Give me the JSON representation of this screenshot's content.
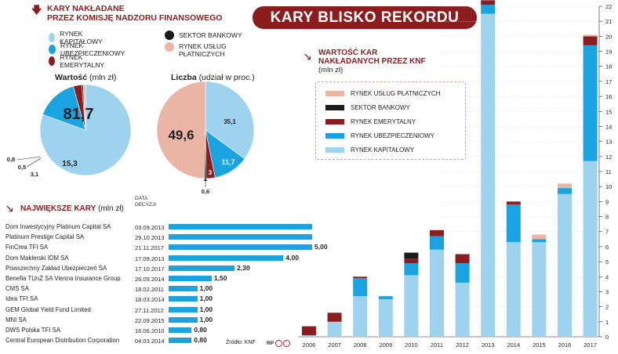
{
  "headline": "KARY BLISKO REKORDU",
  "section1": {
    "title_line1": "KARY NAKŁADANE",
    "title_line2": "PRZEZ KOMISJĘ NADZORU FINANSOWEGO"
  },
  "pie_legend": [
    {
      "label": "RYNEK KAPITAŁOWY",
      "color": "#9ed3ef"
    },
    {
      "label": "RYNEK UBEZPIECZENIOWY",
      "color": "#1aa3e0"
    },
    {
      "label": "RYNEK EMERYTALNY",
      "color": "#8b1d1f"
    },
    {
      "label": "SEKTOR BANKOWY",
      "color": "#1a1a1a"
    },
    {
      "label": "RYNEK USŁUG PŁATNICZYCH",
      "color": "#eab5a4",
      "label_line1": "RYNEK USŁUG",
      "label_line2": "PŁATNICZYCH"
    }
  ],
  "pie_value": {
    "caption_bold": "Wartość",
    "caption_rest": " (mln zł)",
    "labels": {
      "kap": "81,7",
      "ubez": "15,3",
      "emer": "3,1",
      "bank": "0,5",
      "plat": "0,8"
    }
  },
  "pie_count": {
    "caption_bold": "Liczba",
    "caption_rest": " (udział w proc.)",
    "labels": {
      "plat": "49,6",
      "kap": "35,1",
      "ubez": "11,7",
      "emer": "3",
      "bank": "0,6"
    }
  },
  "section2": {
    "title": "NAJWIĘKSZE KARY",
    "unit": "(mln zł)",
    "date_header_line1": "DATA",
    "date_header_line2": "DECYZJI",
    "source": "Źródło: KNF"
  },
  "table_rows": [
    {
      "name": "Dom Inwestycyjny Platinum Capital SA",
      "date": "03.09.2013",
      "value": 5.0,
      "label": ""
    },
    {
      "name": "Platinum Prestige Capital SA",
      "date": "29.10.2013",
      "value": 5.0,
      "label": ""
    },
    {
      "name": "FinCrea TFI SA",
      "date": "21.11.2017",
      "value": 5.0,
      "label": "5,00"
    },
    {
      "name": "Dom Maklerski IDM SA",
      "date": "17.09.2013",
      "value": 4.0,
      "label": "4,00"
    },
    {
      "name": "Powszechny Zakład Ubezpieczeń SA",
      "date": "17.10.2017",
      "value": 2.3,
      "label": "2,30"
    },
    {
      "name": "Benefia TUnŻ SA Vienna Insurance Group",
      "date": "26.09.2014",
      "value": 1.5,
      "label": "1,50"
    },
    {
      "name": "CMS SA",
      "date": "18.02.2011",
      "value": 1.0,
      "label": "1,00"
    },
    {
      "name": "Idea TFI SA",
      "date": "18.03.2014",
      "value": 1.0,
      "label": "1,00"
    },
    {
      "name": "GEM Global Yield Fund Limited",
      "date": "27.11.2012",
      "value": 1.0,
      "label": "1,00"
    },
    {
      "name": "MNI SA",
      "date": "22.09.2015",
      "value": 1.0,
      "label": "1,00"
    },
    {
      "name": "DWS Polska TFI SA",
      "date": "16.06.2010",
      "value": 0.8,
      "label": "0,80"
    },
    {
      "name": "Central European Distribution Corporation",
      "date": "04.03.2014",
      "value": 0.8,
      "label": "0,80"
    }
  ],
  "section3": {
    "title_line1": "WARTOŚĆ KAR",
    "title_line2": "NAKŁADANYCH PRZEZ KNF",
    "unit": "(mln zł)"
  },
  "stack_legend": [
    {
      "label": "RYNEK USŁUG PŁATNICZYCH",
      "color": "#eab5a4"
    },
    {
      "label": "SEKTOR BANKOWY",
      "color": "#1a1a1a"
    },
    {
      "label": "RYNEK EMERYTALNY",
      "color": "#8b1d1f"
    },
    {
      "label": "RYNEK UBEZPIECZENIOWY",
      "color": "#1aa3e0"
    },
    {
      "label": "RYNEK KAPITAŁOWY",
      "color": "#9ed3ef"
    }
  ],
  "colors": {
    "kap": "#9ed3ef",
    "ubez": "#1aa3e0",
    "emer": "#8b1d1f",
    "bank": "#1a1a1a",
    "plat": "#eab5a4",
    "accent": "#8b1d1f",
    "table_bar": "#1aa3e0"
  },
  "chart_data": [
    {
      "type": "pie",
      "title": "Wartość (mln zł)",
      "categories": [
        "RYNEK KAPITAŁOWY",
        "RYNEK UBEZPIECZENIOWY",
        "RYNEK EMERYTALNY",
        "SEKTOR BANKOWY",
        "RYNEK USŁUG PŁATNICZYCH"
      ],
      "values": [
        81.7,
        15.3,
        3.1,
        0.5,
        0.8
      ]
    },
    {
      "type": "pie",
      "title": "Liczba (udział w proc.)",
      "categories": [
        "RYNEK KAPITAŁOWY",
        "RYNEK UBEZPIECZENIOWY",
        "RYNEK EMERYTALNY",
        "SEKTOR BANKOWY",
        "RYNEK USŁUG PŁATNICZYCH"
      ],
      "values": [
        35.1,
        11.7,
        3,
        0.6,
        49.6
      ]
    },
    {
      "type": "bar",
      "title": "NAJWIĘKSZE KARY (mln zł)",
      "categories": [
        "Dom Inwestycyjny Platinum Capital SA",
        "Platinum Prestige Capital SA",
        "FinCrea TFI SA",
        "Dom Maklerski IDM SA",
        "Powszechny Zakład Ubezpieczeń SA",
        "Benefia TUnŻ SA Vienna Insurance Group",
        "CMS SA",
        "Idea TFI SA",
        "GEM Global Yield Fund Limited",
        "MNI SA",
        "DWS Polska TFI SA",
        "Central European Distribution Corporation"
      ],
      "values": [
        5.0,
        5.0,
        5.0,
        4.0,
        2.3,
        1.5,
        1.0,
        1.0,
        1.0,
        1.0,
        0.8,
        0.8
      ]
    },
    {
      "type": "bar",
      "title": "WARTOŚĆ KAR NAKŁADANYCH PRZEZ KNF (mln zł)",
      "categories": [
        "2006",
        "2007",
        "2008",
        "2009",
        "2010",
        "2011",
        "2012",
        "2013",
        "2014",
        "2015",
        "2016",
        "2017"
      ],
      "series": [
        {
          "name": "RYNEK KAPITAŁOWY",
          "values": [
            0.1,
            1.0,
            2.7,
            2.5,
            4.1,
            5.8,
            3.6,
            21.5,
            6.3,
            6.3,
            9.5,
            11.7
          ]
        },
        {
          "name": "RYNEK UBEZPIECZENIOWY",
          "values": [
            0,
            0,
            1.2,
            0.2,
            0.8,
            0.9,
            1.3,
            0.6,
            2.5,
            0.2,
            0.4,
            7.7
          ]
        },
        {
          "name": "RYNEK EMERYTALNY",
          "values": [
            0.6,
            0.6,
            0.1,
            0,
            0.3,
            0.4,
            0.6,
            0.3,
            0.2,
            0,
            0,
            0.6
          ]
        },
        {
          "name": "SEKTOR BANKOWY",
          "values": [
            0,
            0,
            0,
            0,
            0.4,
            0,
            0,
            0,
            0,
            0,
            0,
            0
          ]
        },
        {
          "name": "RYNEK USŁUG PŁATNICZYCH",
          "values": [
            0,
            0,
            0,
            0,
            0,
            0,
            0,
            0,
            0,
            0.3,
            0.3,
            0.1
          ]
        }
      ],
      "ylim": [
        0,
        22
      ],
      "yticks": [
        0,
        1,
        2,
        3,
        4,
        5,
        6,
        7,
        8,
        9,
        10,
        11,
        12,
        13,
        14,
        15,
        16,
        17,
        18,
        19,
        20,
        21,
        22
      ],
      "grid": true,
      "legend": "top-left"
    }
  ]
}
